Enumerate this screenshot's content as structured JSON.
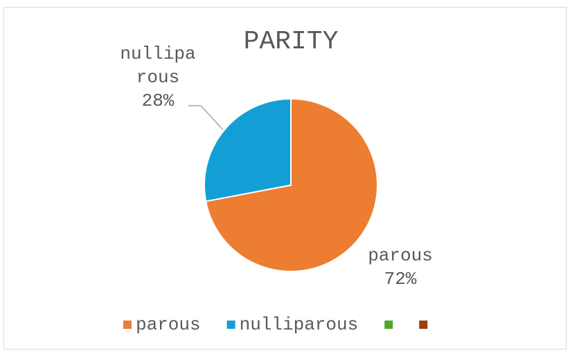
{
  "chart_data": {
    "type": "pie",
    "title": "PARITY",
    "categories": [
      "parous",
      "nulliparous",
      null,
      null
    ],
    "values": [
      72,
      28,
      null,
      null
    ],
    "value_labels": [
      "72%",
      "28%",
      null,
      null
    ],
    "colors": [
      "#ed7d31",
      "#139fd6",
      "#4ea72e",
      "#9b3d0c"
    ],
    "legend": "bottom"
  }
}
